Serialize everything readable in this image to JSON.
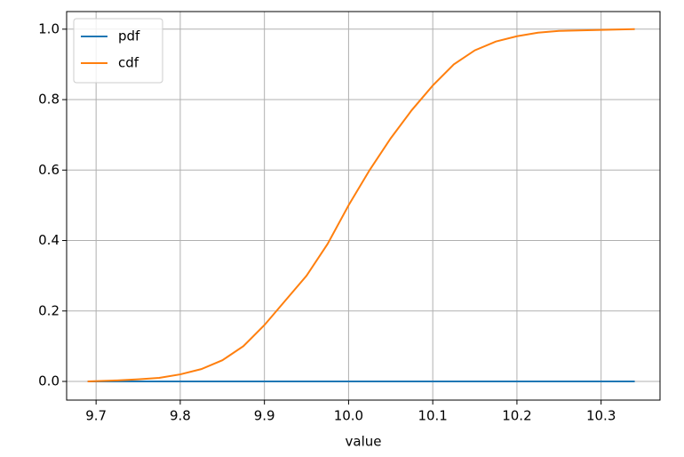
{
  "chart_data": {
    "type": "line",
    "xlabel": "value",
    "x": [
      9.69,
      9.725,
      9.75,
      9.775,
      9.8,
      9.825,
      9.85,
      9.875,
      9.9,
      9.925,
      9.95,
      9.975,
      10.0,
      10.025,
      10.05,
      10.075,
      10.1,
      10.125,
      10.15,
      10.175,
      10.2,
      10.225,
      10.25,
      10.3,
      10.34
    ],
    "series": [
      {
        "name": "pdf",
        "color": "#1f77b4",
        "values": [
          0,
          0,
          0,
          0,
          0,
          0,
          0,
          0,
          0,
          0,
          0,
          0,
          0,
          0,
          0,
          0,
          0,
          0,
          0,
          0,
          0,
          0,
          0,
          0,
          0
        ]
      },
      {
        "name": "cdf",
        "color": "#ff7f0e",
        "values": [
          0.0,
          0.003,
          0.006,
          0.01,
          0.02,
          0.035,
          0.06,
          0.1,
          0.16,
          0.23,
          0.3,
          0.39,
          0.5,
          0.6,
          0.69,
          0.77,
          0.84,
          0.9,
          0.94,
          0.965,
          0.98,
          0.99,
          0.995,
          0.998,
          1.0
        ]
      }
    ],
    "xlim": [
      9.665,
      10.37
    ],
    "xticks": [
      9.7,
      9.8,
      9.9,
      {
        "value": 10.0,
        "label": "10.0"
      },
      10.1,
      10.2,
      10.3
    ],
    "ylim": [
      -0.053,
      1.05
    ],
    "yticks": [
      {
        "value": 0,
        "label": "0.0"
      },
      {
        "value": 0.2,
        "label": "0.2"
      },
      {
        "value": 0.4,
        "label": "0.4"
      },
      {
        "value": 0.6,
        "label": "0.6"
      },
      {
        "value": 0.8,
        "label": "0.8"
      },
      {
        "value": 1,
        "label": "1.0"
      }
    ],
    "grid": true,
    "legend": "upper-left"
  }
}
